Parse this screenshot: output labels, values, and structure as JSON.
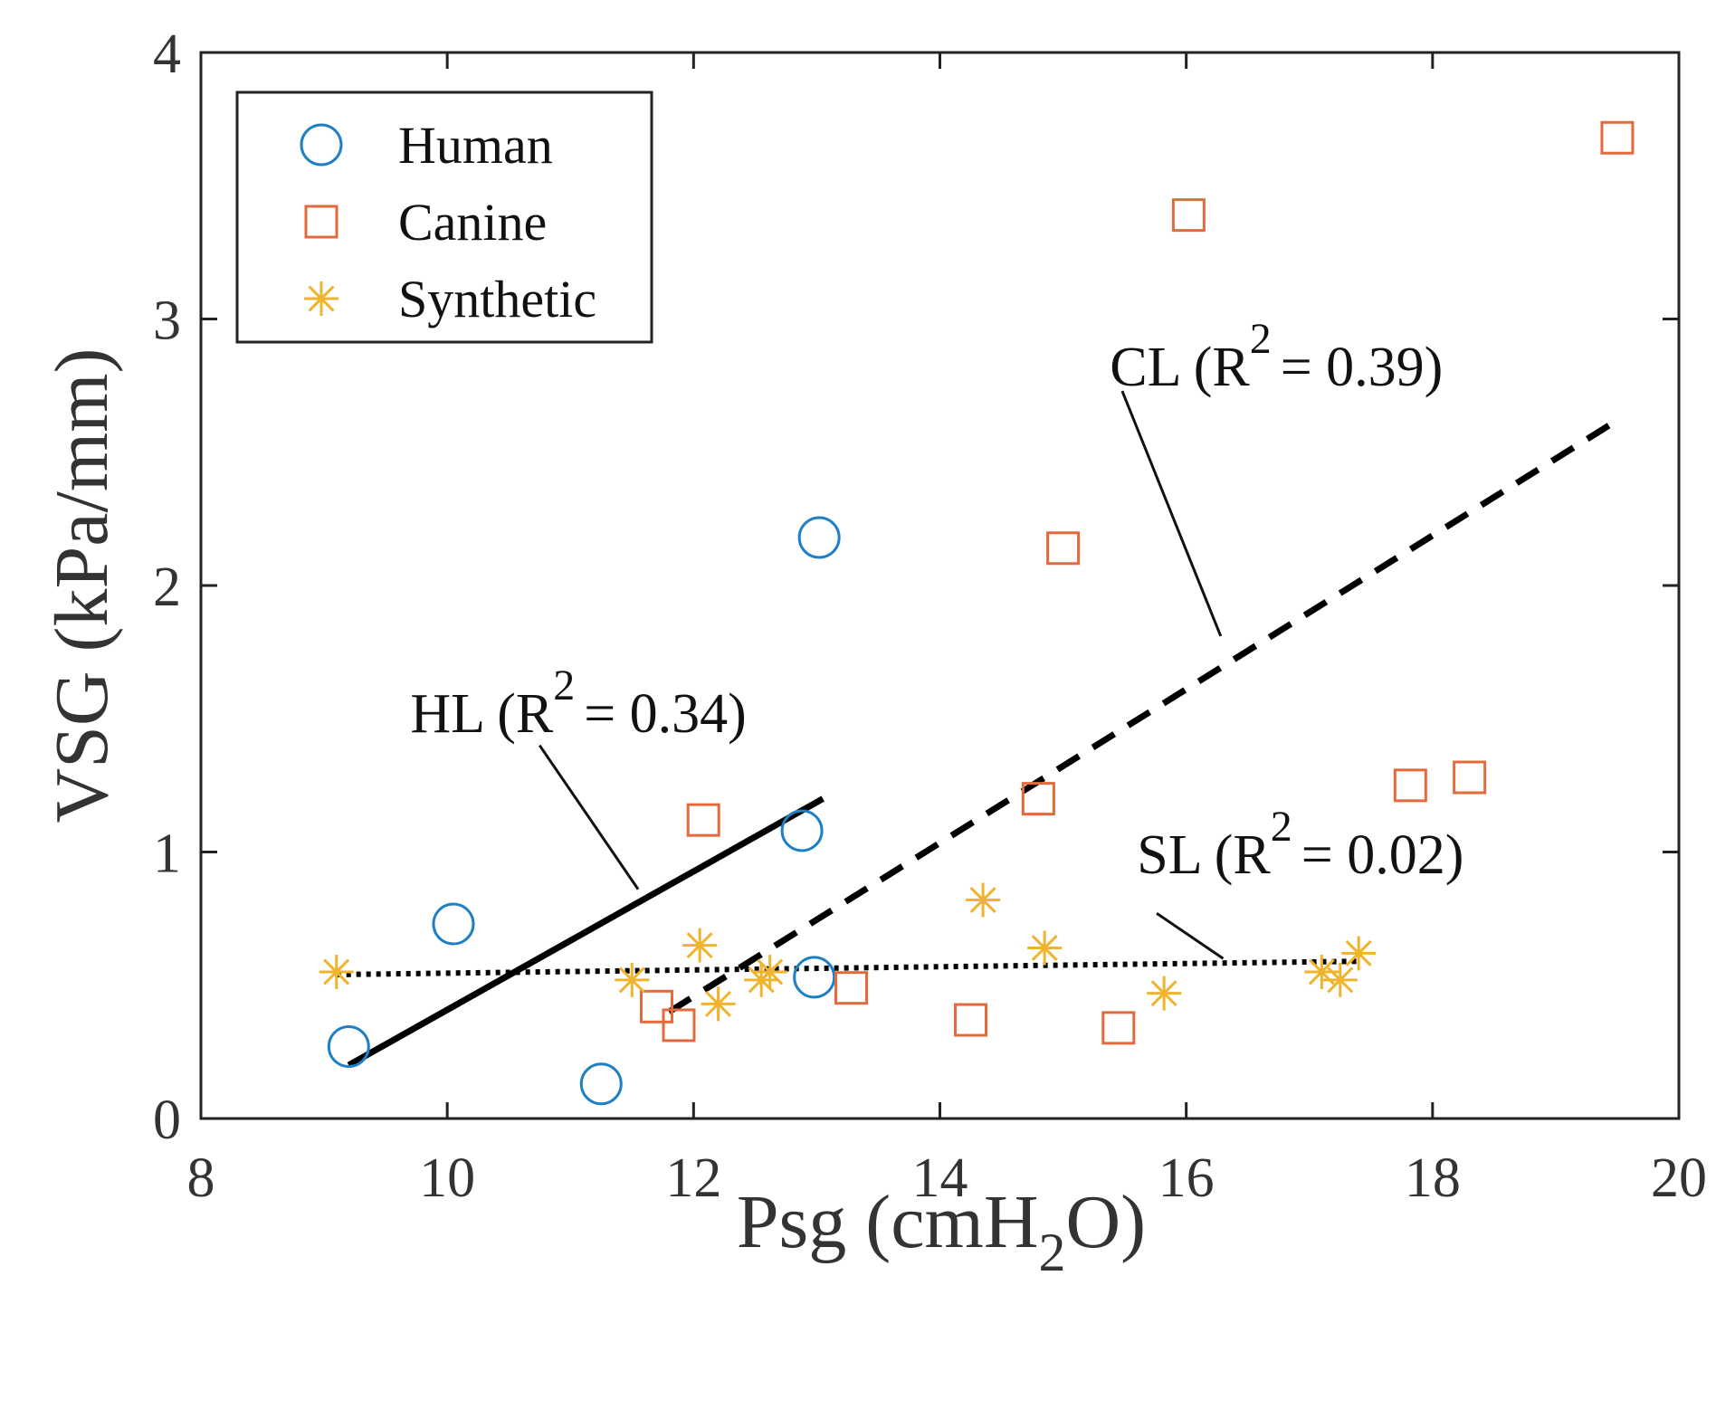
{
  "chart_data": {
    "type": "scatter",
    "xlabel": "Psg (cmH",
    "xlabel_sub": "2",
    "xlabel_end": "O)",
    "ylabel": "VSG (kPa/mm)",
    "xlim": [
      8,
      20
    ],
    "ylim": [
      0,
      4
    ],
    "xticks": [
      8,
      10,
      12,
      14,
      16,
      18,
      20
    ],
    "yticks": [
      0,
      1,
      2,
      3,
      4
    ],
    "xtick_labels": [
      "8",
      "10",
      "12",
      "14",
      "16",
      "18",
      "20"
    ],
    "ytick_labels": [
      "0",
      "1",
      "2",
      "3",
      "4"
    ],
    "legend_position": "top-left",
    "colors": {
      "human": "#1f7fc4",
      "canine": "#e36a3d",
      "synthetic": "#f0b32c",
      "line": "#000000"
    },
    "series": [
      {
        "name": "Human",
        "marker": "circle",
        "points": [
          [
            9.2,
            0.27
          ],
          [
            10.05,
            0.73
          ],
          [
            11.25,
            0.13
          ],
          [
            12.88,
            1.08
          ],
          [
            13.02,
            2.18
          ],
          [
            12.98,
            0.53
          ]
        ]
      },
      {
        "name": "Canine",
        "marker": "square",
        "points": [
          [
            11.7,
            0.42
          ],
          [
            11.88,
            0.35
          ],
          [
            12.08,
            1.12
          ],
          [
            13.28,
            0.49
          ],
          [
            14.25,
            0.37
          ],
          [
            14.8,
            1.2
          ],
          [
            15.0,
            2.14
          ],
          [
            15.45,
            0.34
          ],
          [
            16.02,
            3.39
          ],
          [
            17.82,
            1.25
          ],
          [
            18.3,
            1.28
          ],
          [
            19.5,
            3.68
          ]
        ]
      },
      {
        "name": "Synthetic",
        "marker": "asterisk",
        "points": [
          [
            9.1,
            0.55
          ],
          [
            11.5,
            0.52
          ],
          [
            12.05,
            0.65
          ],
          [
            12.2,
            0.43
          ],
          [
            12.55,
            0.52
          ],
          [
            12.62,
            0.55
          ],
          [
            14.35,
            0.82
          ],
          [
            14.85,
            0.64
          ],
          [
            15.82,
            0.47
          ],
          [
            17.1,
            0.55
          ],
          [
            17.25,
            0.52
          ],
          [
            17.4,
            0.62
          ]
        ]
      }
    ],
    "fit_lines": [
      {
        "name": "HL",
        "style": "solid",
        "x": [
          9.2,
          13.05
        ],
        "y": [
          0.2,
          1.2
        ]
      },
      {
        "name": "CL",
        "style": "dashed",
        "x": [
          11.8,
          19.5
        ],
        "y": [
          0.4,
          2.62
        ]
      },
      {
        "name": "SL",
        "style": "dotted",
        "x": [
          9.1,
          17.4
        ],
        "y": [
          0.54,
          0.59
        ]
      }
    ],
    "annotations": [
      {
        "label": "HL",
        "prefix": "(R",
        "sup": "2",
        "suffix": "= 0.34)",
        "text_at": [
          9.7,
          1.45
        ],
        "leader_from": [
          10.75,
          1.4
        ],
        "leader_to": [
          11.55,
          0.86
        ]
      },
      {
        "label": "CL",
        "prefix": "(R",
        "sup": "2",
        "suffix": "= 0.39)",
        "text_at": [
          15.38,
          2.75
        ],
        "leader_from": [
          15.48,
          2.73
        ],
        "leader_to": [
          16.28,
          1.81
        ]
      },
      {
        "label": "SL",
        "prefix": "(R",
        "sup": "2",
        "suffix": "= 0.02)",
        "text_at": [
          15.6,
          0.92
        ],
        "leader_from": [
          15.76,
          0.77
        ],
        "leader_to": [
          16.3,
          0.6
        ]
      }
    ]
  }
}
